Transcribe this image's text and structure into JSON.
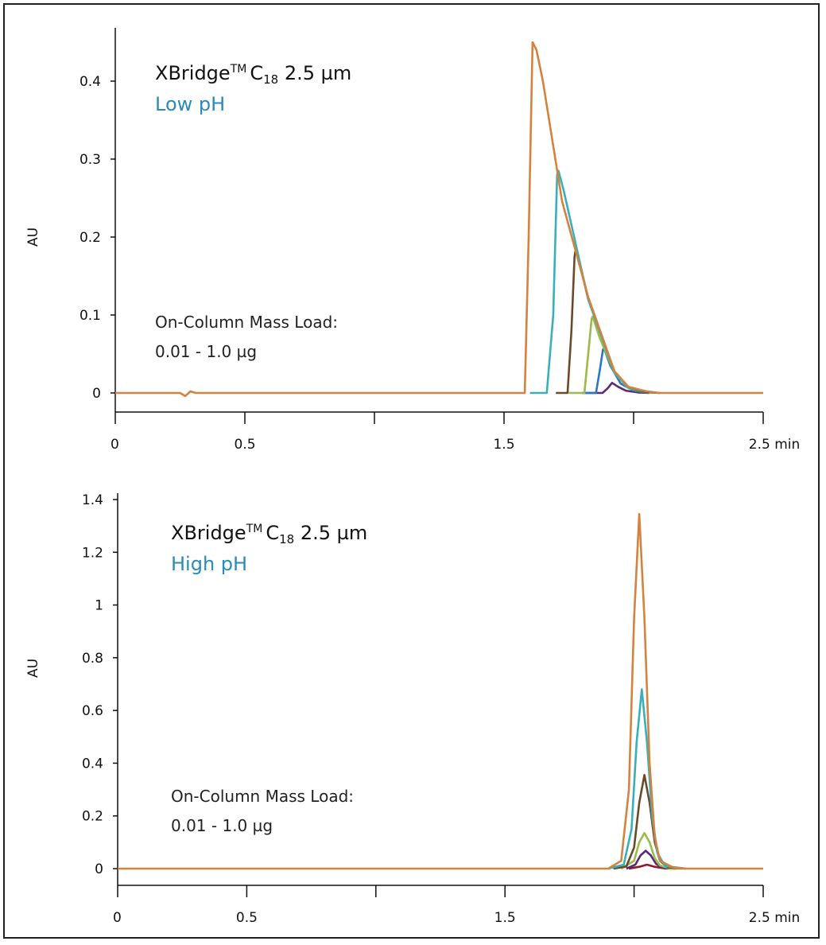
{
  "chart_data": [
    {
      "type": "line",
      "title": "XBridge™ C18 2.5 µm",
      "title_main": "XBridge",
      "title_tm": "TM",
      "title_c": "C",
      "title_sub": "18",
      "title_rest": "2.5 µm",
      "subtitle": "Low pH",
      "subtitle_color": "#2a8ab8",
      "annotation_line1": "On-Column Mass Load:",
      "annotation_line2": "0.01 - 1.0 µg",
      "ylabel": "AU",
      "xlabel": "min",
      "xlim": [
        0,
        2.5
      ],
      "ylim": [
        0,
        0.45
      ],
      "grid": false,
      "x_ticks": [
        0,
        0.5,
        1.0,
        1.5,
        2.0,
        2.5
      ],
      "x_tick_labels": [
        "0",
        "0.5",
        "",
        "1.5",
        "",
        "2.5 min"
      ],
      "y_ticks": [
        0,
        0.1,
        0.2,
        0.3,
        0.4
      ],
      "y_tick_labels": [
        "0",
        "0.1",
        "0.2",
        "0.3",
        "0.4"
      ],
      "series": [
        {
          "color": "#5a2a7a",
          "points": [
            [
              1.8,
              0
            ],
            [
              1.88,
              0
            ],
            [
              1.9,
              0.006
            ],
            [
              1.917,
              0.013
            ],
            [
              1.94,
              0.008
            ],
            [
              1.97,
              0.003
            ],
            [
              2.02,
              0.0005
            ],
            [
              2.06,
              0
            ]
          ]
        },
        {
          "color": "#2a78c0",
          "points": [
            [
              1.8,
              0
            ],
            [
              1.855,
              0
            ],
            [
              1.87,
              0.03
            ],
            [
              1.882,
              0.056
            ],
            [
              1.886,
              0.057
            ],
            [
              1.91,
              0.035
            ],
            [
              1.95,
              0.012
            ],
            [
              2.0,
              0.003
            ],
            [
              2.06,
              0
            ]
          ]
        },
        {
          "color": "#9bbb4a",
          "points": [
            [
              1.75,
              0
            ],
            [
              1.81,
              0
            ],
            [
              1.825,
              0.05
            ],
            [
              1.838,
              0.095
            ],
            [
              1.842,
              0.098
            ],
            [
              1.87,
              0.07
            ],
            [
              1.926,
              0.026
            ],
            [
              1.98,
              0.006
            ],
            [
              2.05,
              0.001
            ],
            [
              2.1,
              0
            ]
          ]
        },
        {
          "color": "#6b4a2a",
          "points": [
            [
              1.7,
              0
            ],
            [
              1.745,
              0
            ],
            [
              1.76,
              0.08
            ],
            [
              1.772,
              0.175
            ],
            [
              1.776,
              0.183
            ],
            [
              1.8,
              0.155
            ],
            [
              1.825,
              0.12
            ],
            [
              1.926,
              0.027
            ],
            [
              1.98,
              0.007
            ],
            [
              2.05,
              0.001
            ],
            [
              2.1,
              0
            ]
          ]
        },
        {
          "color": "#3aafb8",
          "points": [
            [
              1.6,
              0
            ],
            [
              1.665,
              0
            ],
            [
              1.69,
              0.1
            ],
            [
              1.705,
              0.28
            ],
            [
              1.71,
              0.285
            ],
            [
              1.73,
              0.26
            ],
            [
              1.825,
              0.12
            ],
            [
              1.926,
              0.026
            ],
            [
              1.98,
              0.007
            ],
            [
              2.05,
              0.002
            ],
            [
              2.1,
              0
            ]
          ]
        },
        {
          "color": "#d4823e",
          "points": [
            [
              0,
              0
            ],
            [
              0.25,
              0
            ],
            [
              0.27,
              -0.004
            ],
            [
              0.29,
              0.002
            ],
            [
              0.31,
              0
            ],
            [
              1.58,
              0
            ],
            [
              1.595,
              0.2
            ],
            [
              1.61,
              0.45
            ],
            [
              1.625,
              0.44
            ],
            [
              1.65,
              0.4
            ],
            [
              1.724,
              0.246
            ],
            [
              1.825,
              0.123
            ],
            [
              1.926,
              0.028
            ],
            [
              1.98,
              0.008
            ],
            [
              2.05,
              0.002
            ],
            [
              2.1,
              0
            ],
            [
              2.5,
              0
            ]
          ]
        }
      ]
    },
    {
      "type": "line",
      "title": "XBridge™ C18 2.5 µm",
      "title_main": "XBridge",
      "title_tm": "TM",
      "title_c": "C",
      "title_sub": "18",
      "title_rest": "2.5 µm",
      "subtitle": "High pH",
      "subtitle_color": "#2a8ab8",
      "annotation_line1": "On-Column Mass Load:",
      "annotation_line2": "0.01 - 1.0 µg",
      "ylabel": "AU",
      "xlabel": "min",
      "xlim": [
        0,
        2.5
      ],
      "ylim": [
        0,
        1.4
      ],
      "grid": false,
      "x_ticks": [
        0,
        0.5,
        1.0,
        1.5,
        2.0,
        2.5
      ],
      "x_tick_labels": [
        "0",
        "0.5",
        "",
        "1.5",
        "",
        "2.5 min"
      ],
      "y_ticks": [
        0,
        0.2,
        0.4,
        0.6,
        0.8,
        1.0,
        1.2,
        1.4
      ],
      "y_tick_labels": [
        "0",
        "0.2",
        "0.4",
        "0.6",
        "0.8",
        "1",
        "1.2",
        "1.4"
      ],
      "series": [
        {
          "color": "#8b1a2a",
          "points": [
            [
              1.98,
              0
            ],
            [
              2.02,
              0.007
            ],
            [
              2.05,
              0.015
            ],
            [
              2.08,
              0.007
            ],
            [
              2.12,
              0.001
            ],
            [
              2.16,
              0
            ]
          ]
        },
        {
          "color": "#5a2a7a",
          "points": [
            [
              1.97,
              0
            ],
            [
              2.005,
              0.015
            ],
            [
              2.025,
              0.05
            ],
            [
              2.045,
              0.068
            ],
            [
              2.065,
              0.05
            ],
            [
              2.085,
              0.018
            ],
            [
              2.11,
              0.004
            ],
            [
              2.16,
              0
            ]
          ]
        },
        {
          "color": "#9bbb4a",
          "points": [
            [
              1.95,
              0
            ],
            [
              2.0,
              0.03
            ],
            [
              2.02,
              0.1
            ],
            [
              2.04,
              0.135
            ],
            [
              2.06,
              0.1
            ],
            [
              2.08,
              0.04
            ],
            [
              2.1,
              0.012
            ],
            [
              2.14,
              0
            ],
            [
              2.2,
              0
            ]
          ]
        },
        {
          "color": "#6b4a2a",
          "points": [
            [
              1.92,
              0
            ],
            [
              1.97,
              0.008
            ],
            [
              2.0,
              0.08
            ],
            [
              2.02,
              0.25
            ],
            [
              2.04,
              0.355
            ],
            [
              2.06,
              0.25
            ],
            [
              2.08,
              0.1
            ],
            [
              2.1,
              0.03
            ],
            [
              2.13,
              0.005
            ],
            [
              2.2,
              0
            ]
          ]
        },
        {
          "color": "#3aafb8",
          "points": [
            [
              1.9,
              0
            ],
            [
              1.96,
              0.015
            ],
            [
              1.99,
              0.15
            ],
            [
              2.01,
              0.48
            ],
            [
              2.03,
              0.68
            ],
            [
              2.05,
              0.48
            ],
            [
              2.07,
              0.2
            ],
            [
              2.09,
              0.06
            ],
            [
              2.12,
              0.01
            ],
            [
              2.2,
              0
            ]
          ]
        },
        {
          "color": "#d4823e",
          "points": [
            [
              0,
              0
            ],
            [
              1.9,
              0
            ],
            [
              1.95,
              0.03
            ],
            [
              1.98,
              0.3
            ],
            [
              2.0,
              0.95
            ],
            [
              2.02,
              1.345
            ],
            [
              2.04,
              0.95
            ],
            [
              2.06,
              0.4
            ],
            [
              2.08,
              0.12
            ],
            [
              2.1,
              0.03
            ],
            [
              2.15,
              0.005
            ],
            [
              2.2,
              0
            ],
            [
              2.5,
              0
            ]
          ]
        }
      ]
    }
  ]
}
